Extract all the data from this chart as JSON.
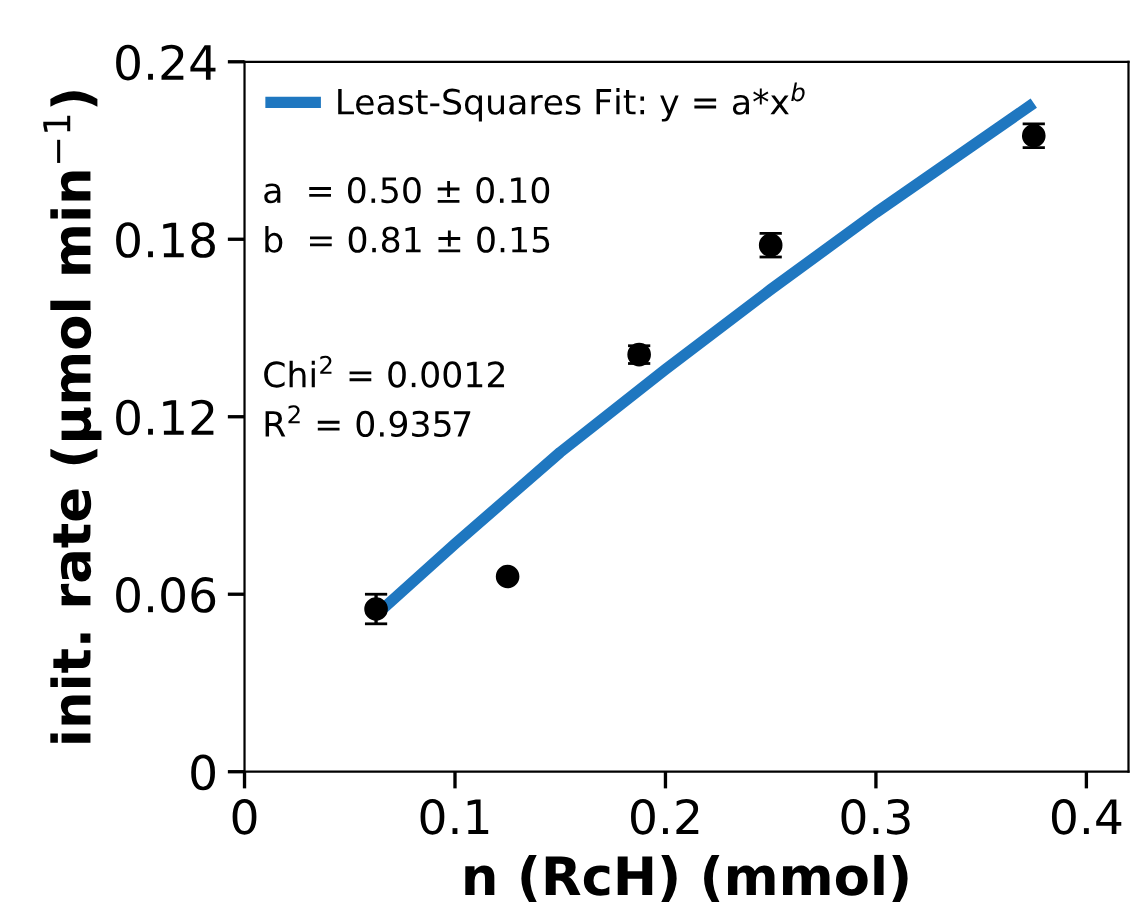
{
  "chart_data": {
    "type": "scatter",
    "xlabel": "n (RcH) (mmol)",
    "ylabel": "init. rate (µmol min$^{−1}$)",
    "xlim": [
      0,
      0.42
    ],
    "ylim": [
      0,
      0.24
    ],
    "xticks": [
      0,
      0.1,
      0.2,
      0.3,
      0.4
    ],
    "yticks": [
      0,
      0.06,
      0.12,
      0.18,
      0.24
    ],
    "grid": false,
    "legend": "top left",
    "marker": "circle",
    "series": [
      {
        "color": "#000000",
        "x": [
          0.0625,
          0.125,
          0.1875,
          0.25,
          0.375
        ],
        "values": [
          0.055,
          0.066,
          0.141,
          0.178,
          0.215
        ],
        "errors": [
          0.005,
          null,
          0.003,
          0.004,
          0.004
        ]
      },
      {
        "type": "line",
        "name": "Least-Squares Fit: y = a*x$^{b}$",
        "color": "#1f77c0",
        "marker": "none",
        "x": [
          0.0625,
          0.1,
          0.15,
          0.2,
          0.25,
          0.3,
          0.375
        ],
        "values": [
          0.053,
          0.077,
          0.108,
          0.136,
          0.163,
          0.189,
          0.226
        ]
      }
    ],
    "annotations": [
      "a  = 0.50 ± 0.10\nb  = 0.81 ± 0.15",
      "Chi$^{2}$ = 0.0012\nR$^{2}$ = 0.9357"
    ]
  }
}
